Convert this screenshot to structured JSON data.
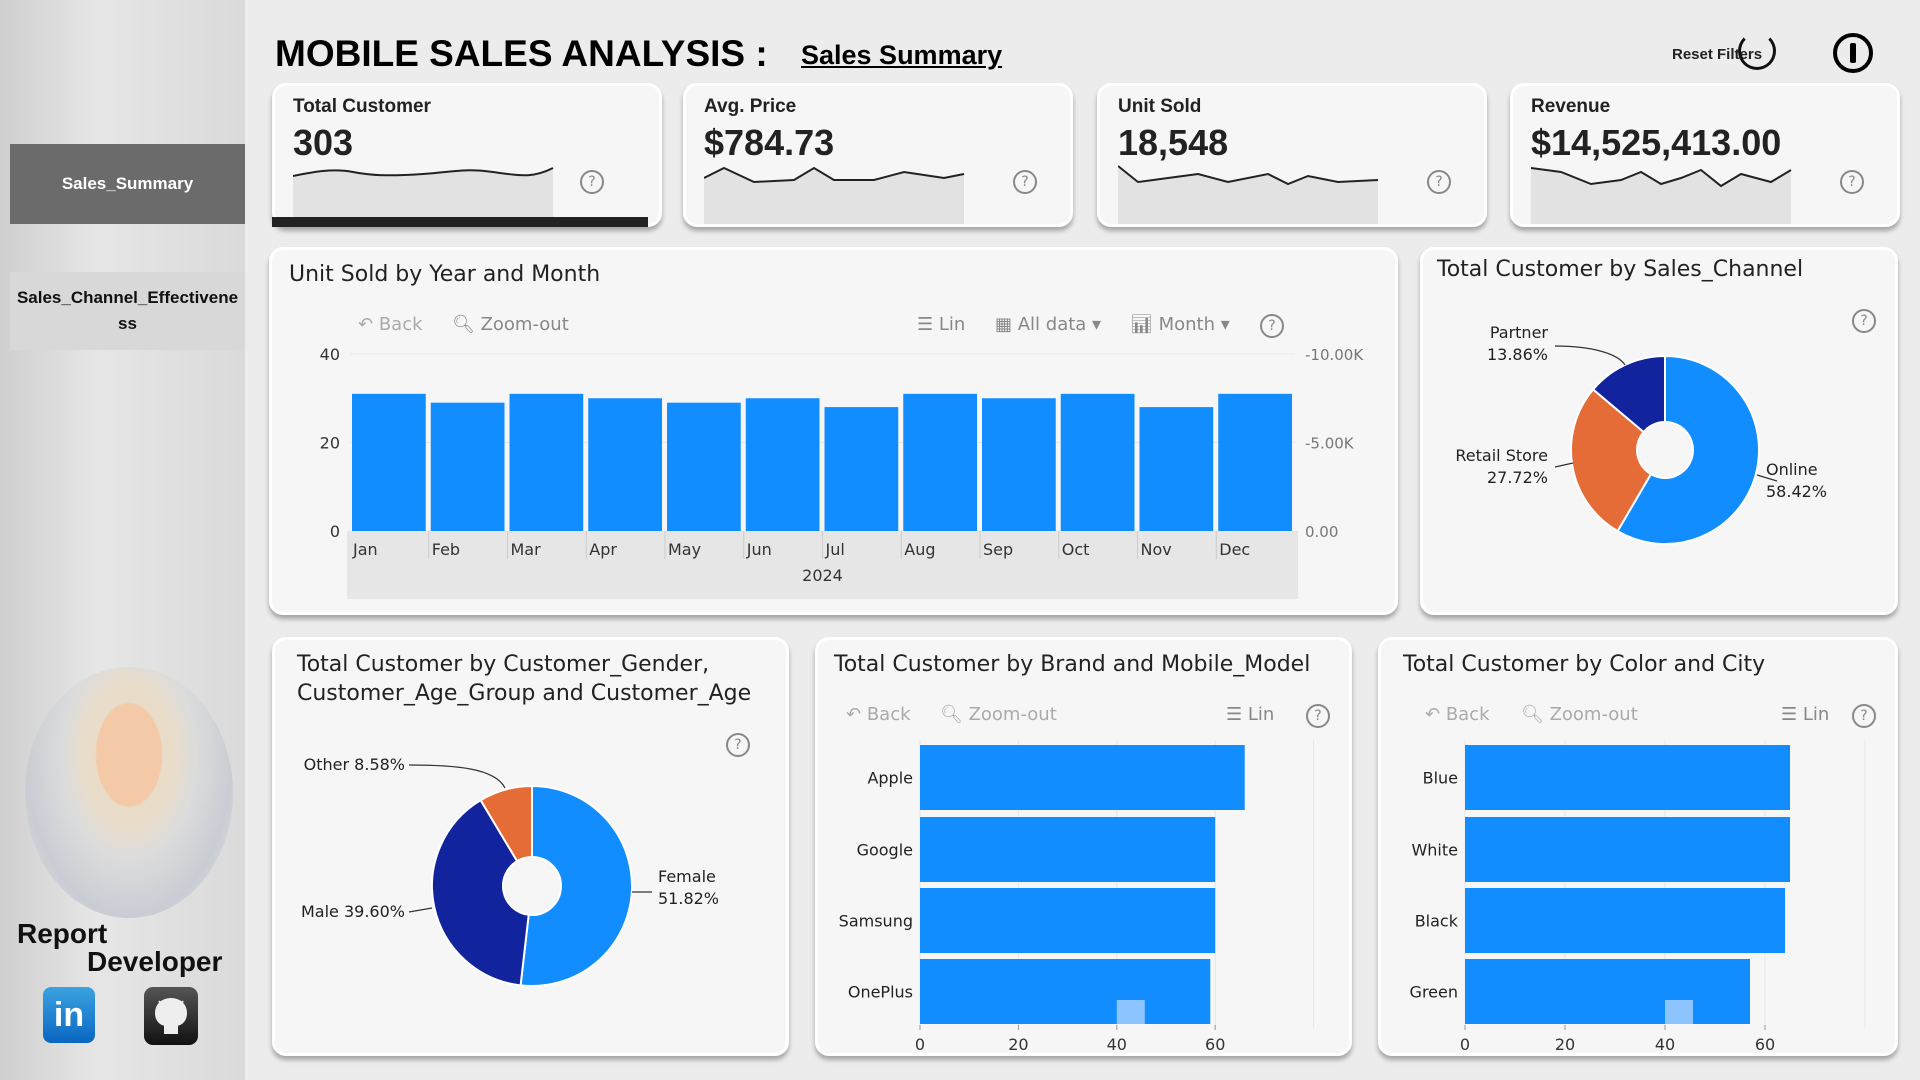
{
  "sidebar": {
    "nav": [
      {
        "label": "Sales_Summary",
        "active": true
      },
      {
        "label": "Sales_Channel_Effectiveness",
        "active": false
      }
    ],
    "developer_line1": "Report",
    "developer_line2": "Developer",
    "icons": [
      "linkedin-icon",
      "github-icon"
    ]
  },
  "header": {
    "title": "MOBILE SALES ANALYSIS :",
    "subtitle": "Sales Summary",
    "reset_filters": "Reset Filters",
    "help": "?"
  },
  "kpis": [
    {
      "label": "Total Customer",
      "value": "303",
      "selected": true
    },
    {
      "label": "Avg. Price",
      "value": "$784.73"
    },
    {
      "label": "Unit Sold",
      "value": "18,548"
    },
    {
      "label": "Revenue",
      "value": "$14,525,413.00"
    }
  ],
  "toolbar": {
    "back": "Back",
    "zoom_out": "Zoom-out",
    "lin": "Lin",
    "all_data": "All data",
    "month": "Month",
    "help": "?"
  },
  "colors": {
    "blue": "#118DFF",
    "orange": "#E66C37",
    "navy": "#12239E"
  },
  "chart_data": [
    {
      "type": "bar",
      "title": "Unit Sold by Year and Month",
      "categories": [
        "Jan",
        "Feb",
        "Mar",
        "Apr",
        "May",
        "Jun",
        "Jul",
        "Aug",
        "Sep",
        "Oct",
        "Nov",
        "Dec"
      ],
      "values": [
        31,
        29,
        31,
        30,
        29,
        30,
        28,
        31,
        30,
        31,
        28,
        31
      ],
      "xgroup": "2024",
      "ylim": [
        0,
        40
      ],
      "yticks": [
        "0",
        "20",
        "40"
      ],
      "y2ticks": [
        "0.00",
        "-5.00K",
        "-10.00K"
      ],
      "grid": true
    },
    {
      "type": "pie",
      "title": "Total Customer by Sales_Channel",
      "slices": [
        {
          "label": "Online",
          "pct": "58.42%",
          "value": 58.42
        },
        {
          "label": "Retail Store",
          "pct": "27.72%",
          "value": 27.72
        },
        {
          "label": "Partner",
          "pct": "13.86%",
          "value": 13.86
        }
      ]
    },
    {
      "type": "pie",
      "title1": "Total Customer by Customer_Gender,",
      "title2": "Customer_Age_Group and Customer_Age",
      "slices": [
        {
          "label": "Female",
          "pct": "51.82%",
          "value": 51.82
        },
        {
          "label": "Male",
          "pct": "39.60%",
          "value": 39.6
        },
        {
          "label": "Other",
          "pct": "8.58%",
          "value": 8.58
        }
      ]
    },
    {
      "type": "bar",
      "orientation": "horizontal",
      "title": "Total Customer by Brand and Mobile_Model",
      "categories": [
        "Apple",
        "Google",
        "Samsung",
        "OnePlus"
      ],
      "values": [
        66,
        60,
        60,
        59
      ],
      "xlim": [
        0,
        80
      ],
      "xticks": [
        "0",
        "20",
        "40",
        "60"
      ]
    },
    {
      "type": "bar",
      "orientation": "horizontal",
      "title": "Total Customer by Color and City",
      "categories": [
        "Blue",
        "White",
        "Black",
        "Green"
      ],
      "values": [
        65,
        65,
        64,
        57
      ],
      "xlim": [
        0,
        80
      ],
      "xticks": [
        "0",
        "20",
        "40",
        "60"
      ]
    }
  ]
}
